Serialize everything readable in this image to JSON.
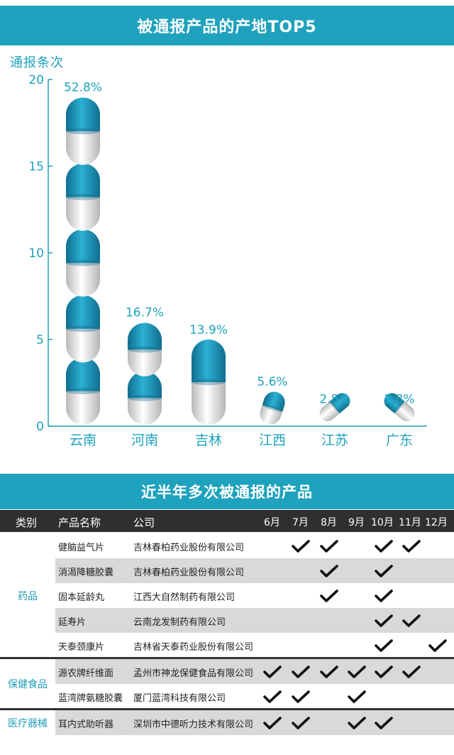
{
  "title1": "被通报产品的产地TOP5",
  "title2": "近半年多次被通报的产品",
  "chart_data": {
    "type": "bar",
    "ylabel": "通报条次",
    "categories": [
      "云南",
      "河南",
      "吉林",
      "江西",
      "江苏",
      "广东"
    ],
    "values": [
      19,
      6,
      5,
      2,
      1,
      1
    ],
    "data_labels": [
      "52.8%",
      "16.7%",
      "13.9%",
      "5.6%",
      "2.8%",
      "2.8%"
    ],
    "yticks": [
      "0",
      "5",
      "10",
      "15",
      "20"
    ],
    "ylim": [
      0,
      20
    ],
    "colors": {
      "accent": "#1ea2bd",
      "capsule_top": "#1a8fb0",
      "capsule_bottom": "#e9e9e9"
    }
  },
  "table": {
    "headers": {
      "category": "类别",
      "product": "产品名称",
      "company": "公司"
    },
    "months": [
      "6月",
      "7月",
      "8月",
      "9月",
      "10月",
      "11月",
      "12月"
    ],
    "groups": [
      {
        "category": "药品",
        "rows": [
          {
            "product": "健脑益气片",
            "company": "吉林春柏药业股份有限公司",
            "checks": [
              0,
              1,
              1,
              0,
              1,
              1,
              0
            ]
          },
          {
            "product": "消渴降糖胶囊",
            "company": "吉林春柏药业股份有限公司",
            "checks": [
              0,
              0,
              1,
              0,
              1,
              0,
              0
            ]
          },
          {
            "product": "固本延龄丸",
            "company": "江西大自然制药有限公司",
            "checks": [
              0,
              0,
              1,
              0,
              1,
              0,
              0
            ]
          },
          {
            "product": "延寿片",
            "company": "云南龙发制药有限公司",
            "checks": [
              0,
              0,
              0,
              0,
              1,
              1,
              0
            ]
          },
          {
            "product": "天泰颈康片",
            "company": "吉林省天泰药业股份有限公司",
            "checks": [
              0,
              0,
              0,
              0,
              1,
              0,
              1
            ]
          }
        ]
      },
      {
        "category": "保健食品",
        "rows": [
          {
            "product": "源农牌纤维面",
            "company": "孟州市神龙保健食品有限公司",
            "checks": [
              1,
              1,
              1,
              1,
              1,
              1,
              0
            ]
          },
          {
            "product": "蓝湾牌氨糖胶囊",
            "company": "厦门蓝湾科技有限公司",
            "checks": [
              1,
              1,
              0,
              1,
              0,
              0,
              0
            ]
          }
        ]
      },
      {
        "category": "医疗器械",
        "rows": [
          {
            "product": "耳内式助听器",
            "company": "深圳市中德听力技术有限公司",
            "checks": [
              1,
              1,
              0,
              1,
              1,
              0,
              0
            ]
          }
        ]
      }
    ]
  }
}
